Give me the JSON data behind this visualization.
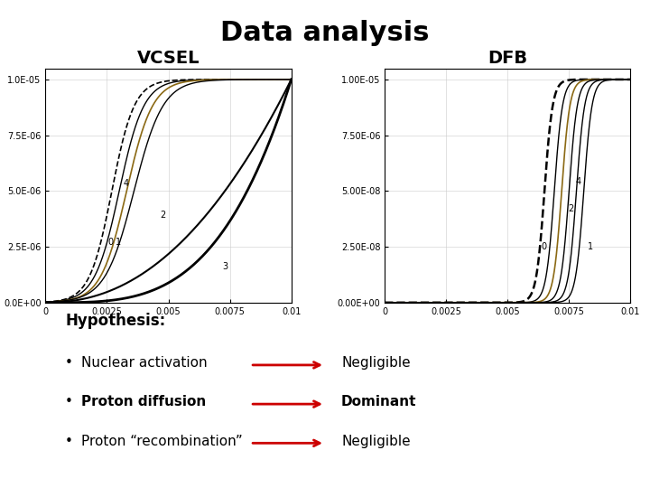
{
  "title": "Data analysis",
  "title_fontsize": 22,
  "title_fontweight": "bold",
  "vcsel_label": "VCSEL",
  "dfb_label": "DFB",
  "label_fontsize": 14,
  "label_fontweight": "bold",
  "bg_color": "#ffffff",
  "hypothesis_title": "Hypothesis:",
  "bullet_items": [
    {
      "text": "Nuclear activation",
      "bold": false,
      "result": "Negligible",
      "result_bold": false
    },
    {
      "text": "Proton diffusion",
      "bold": true,
      "result": "Dominant",
      "result_bold": true
    },
    {
      "text": "Proton “recombination”",
      "bold": false,
      "result": "Negligible",
      "result_bold": false
    }
  ],
  "arrow_color": "#cc0000",
  "bullet_fontsize": 11,
  "vcsel_ytick_labels": [
    "0.0E+00",
    "2.5E-06",
    "5.0E-06",
    "7.5E-06",
    "1.0E-05"
  ],
  "vcsel_xtick_labels": [
    "0",
    "0.0025",
    "0.005",
    "0.0075",
    "0.01"
  ],
  "dfb_ytick_labels": [
    "0.00E+00",
    "2.50E-08",
    "5.00E-08",
    "7.50E-06",
    "1.00E-05"
  ],
  "dfb_xtick_labels": [
    "0",
    "0.0025",
    "0.005",
    "0.0075",
    "0.01"
  ]
}
